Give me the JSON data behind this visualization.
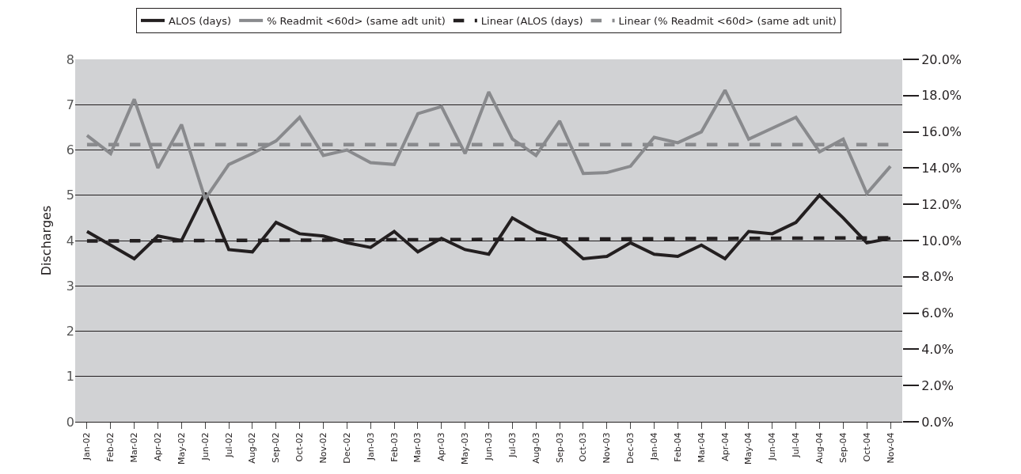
{
  "chart_data": {
    "type": "line",
    "ylabel": "Discharges",
    "categories": [
      "Jan-02",
      "Feb-02",
      "Mar-02",
      "Apr-02",
      "May-02",
      "Jun-02",
      "Jul-02",
      "Aug-02",
      "Sep-02",
      "Oct-02",
      "Nov-02",
      "Dec-02",
      "Jan-03",
      "Feb-03",
      "Mar-03",
      "Apr-03",
      "May-03",
      "Jun-03",
      "Jul-03",
      "Aug-03",
      "Sep-03",
      "Oct-03",
      "Nov-03",
      "Dec-03",
      "Jan-04",
      "Feb-04",
      "Mar-04",
      "Apr-04",
      "May-04",
      "Jun-04",
      "Jul-04",
      "Aug-04",
      "Sep-04",
      "Oct-04",
      "Nov-04"
    ],
    "series": [
      {
        "name": "ALOS (days)",
        "color": "#231f20",
        "line_style": "solid",
        "values": [
          4.2,
          3.9,
          3.6,
          4.1,
          4.0,
          5.05,
          3.8,
          3.75,
          4.4,
          4.15,
          4.1,
          3.95,
          3.85,
          4.2,
          3.75,
          4.05,
          3.8,
          3.7,
          4.5,
          4.2,
          4.05,
          3.6,
          3.65,
          3.95,
          3.7,
          3.65,
          3.9,
          3.6,
          4.2,
          4.15,
          4.4,
          5.0,
          4.5,
          3.95,
          4.05
        ]
      },
      {
        "name": "% Readmit <60d> (same adt unit)",
        "color": "#898a8d",
        "line_style": "solid",
        "axis": "y2",
        "values": [
          15.8,
          14.8,
          17.8,
          14.0,
          16.4,
          12.3,
          14.2,
          14.8,
          15.5,
          16.8,
          14.7,
          15.0,
          14.3,
          14.2,
          17.0,
          17.4,
          14.8,
          18.2,
          15.6,
          14.7,
          16.6,
          13.7,
          13.75,
          14.1,
          15.7,
          15.4,
          16.0,
          18.3,
          15.6,
          16.2,
          16.8,
          14.9,
          15.6,
          12.6,
          14.1
        ]
      },
      {
        "name": "Linear (ALOS (days)",
        "color": "#231f20",
        "line_style": "dashed",
        "x": [
          "Jan-02",
          "Nov-04"
        ],
        "values": [
          3.99,
          4.06
        ]
      },
      {
        "name": "Linear (% Readmit <60d> (same adt unit)",
        "color": "#898a8d",
        "line_style": "dashed",
        "axis": "y2",
        "x": [
          "Jan-02",
          "Nov-04"
        ],
        "values": [
          15.3,
          15.3
        ]
      }
    ],
    "ylim": [
      0,
      8
    ],
    "yticks": [
      0,
      1,
      2,
      3,
      4,
      5,
      6,
      7,
      8
    ],
    "y2lim": [
      0,
      20
    ],
    "y2ticks": [
      {
        "value": 0,
        "label": "0.0%"
      },
      {
        "value": 2,
        "label": "2.0%"
      },
      {
        "value": 4,
        "label": "4.0%"
      },
      {
        "value": 6,
        "label": "6.0%"
      },
      {
        "value": 8,
        "label": "8.0%"
      },
      {
        "value": 10,
        "label": "10.0%"
      },
      {
        "value": 12,
        "label": "12.0%"
      },
      {
        "value": 14,
        "label": "14.0%"
      },
      {
        "value": 16,
        "label": "16.0%"
      },
      {
        "value": 18,
        "label": "18.0%"
      },
      {
        "value": 20,
        "label": "20.0%"
      }
    ],
    "grid": "y",
    "legend": "top",
    "marker": "none"
  }
}
